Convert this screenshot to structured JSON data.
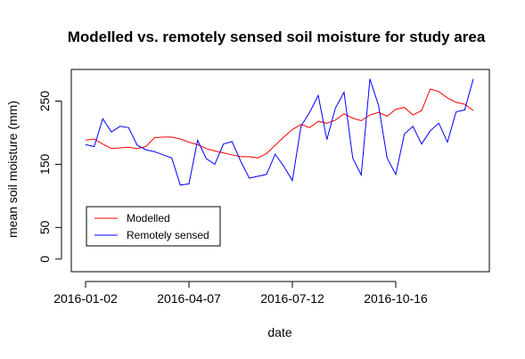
{
  "chart_data": {
    "type": "line",
    "title": "Modelled vs. remotely sensed soil moisture for study area",
    "xlabel": "date",
    "ylabel": "mean soil moisture (mm)",
    "x_ticks": [
      "2016-01-02",
      "2016-04-07",
      "2016-07-12",
      "2016-10-16"
    ],
    "y_ticks": [
      0,
      50,
      150,
      250
    ],
    "ylim": [
      -20,
      300
    ],
    "grid": false,
    "legend_position": "bottom-left",
    "x": [
      "2016-01-02",
      "2016-01-10",
      "2016-01-18",
      "2016-01-26",
      "2016-02-03",
      "2016-02-11",
      "2016-02-19",
      "2016-02-27",
      "2016-03-06",
      "2016-03-14",
      "2016-03-22",
      "2016-03-30",
      "2016-04-07",
      "2016-04-15",
      "2016-04-23",
      "2016-05-01",
      "2016-05-09",
      "2016-05-17",
      "2016-05-25",
      "2016-06-02",
      "2016-06-10",
      "2016-06-18",
      "2016-06-26",
      "2016-07-04",
      "2016-07-12",
      "2016-07-20",
      "2016-07-28",
      "2016-08-05",
      "2016-08-13",
      "2016-08-21",
      "2016-08-29",
      "2016-09-06",
      "2016-09-14",
      "2016-09-22",
      "2016-09-30",
      "2016-10-08",
      "2016-10-16",
      "2016-10-24",
      "2016-11-01",
      "2016-11-09",
      "2016-11-17",
      "2016-11-25",
      "2016-12-03",
      "2016-12-11",
      "2016-12-19",
      "2016-12-27"
    ],
    "series": [
      {
        "name": "Modelled",
        "color": "#ff0000",
        "values": [
          188,
          190,
          182,
          175,
          176,
          177,
          175,
          178,
          192,
          193,
          193,
          190,
          185,
          181,
          175,
          171,
          168,
          165,
          162,
          162,
          160,
          167,
          180,
          193,
          205,
          213,
          208,
          218,
          215,
          220,
          230,
          223,
          219,
          228,
          232,
          226,
          237,
          240,
          228,
          235,
          269,
          265,
          255,
          248,
          245,
          235
        ]
      },
      {
        "name": "Remotely sensed",
        "color": "#0000ff",
        "values": [
          181,
          178,
          222,
          201,
          210,
          208,
          180,
          173,
          170,
          165,
          160,
          117,
          119,
          188,
          159,
          150,
          182,
          186,
          155,
          128,
          131,
          134,
          166,
          147,
          124,
          210,
          232,
          259,
          189,
          239,
          264,
          160,
          133,
          285,
          243,
          160,
          134,
          198,
          210,
          182,
          203,
          215,
          185,
          233,
          236,
          285
        ]
      }
    ]
  }
}
